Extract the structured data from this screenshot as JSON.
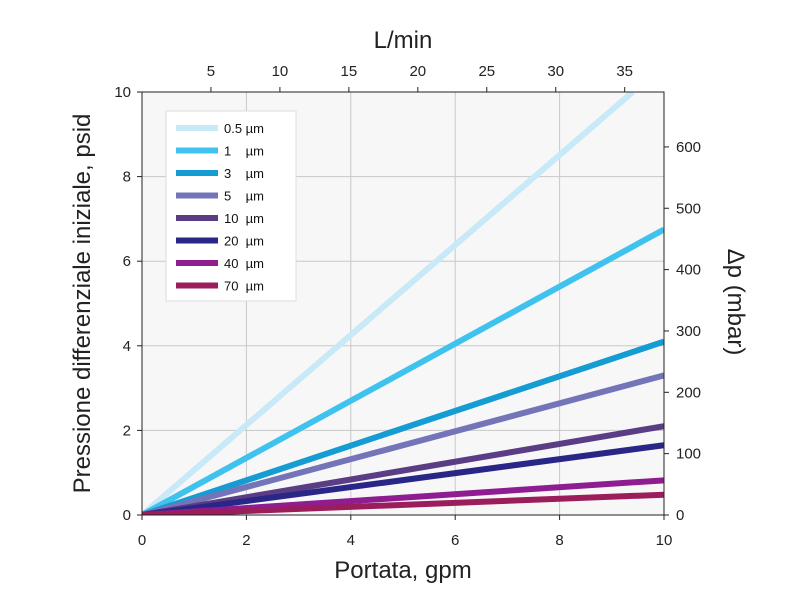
{
  "chart_data": {
    "type": "line",
    "xlabel": "Portata, gpm",
    "ylabel": "Pressione differenziale iniziale, psid",
    "x2label": "L/min",
    "y2label": "Δp (mbar)",
    "xlim": [
      0,
      10
    ],
    "ylim": [
      0,
      10
    ],
    "x_ticks": [
      0,
      2,
      4,
      6,
      8,
      10
    ],
    "y_ticks": [
      0,
      2,
      4,
      6,
      8,
      10
    ],
    "x2_ticks": [
      5,
      10,
      15,
      20,
      25,
      30,
      35
    ],
    "y2_ticks": [
      0,
      100,
      200,
      300,
      400,
      500,
      600
    ],
    "gpm_to_lmin": 3.785,
    "psi_to_mbar": 68.95,
    "grid": true,
    "legend_position": "top-left",
    "series": [
      {
        "name": "0.5 µm",
        "label": "0.5 µm",
        "color": "#c8e9f8",
        "x": [
          0,
          9.4
        ],
        "y": [
          0,
          10
        ]
      },
      {
        "name": "1 µm",
        "label": "1    µm",
        "color": "#3fc3ee",
        "x": [
          0,
          10
        ],
        "y": [
          0,
          6.75
        ]
      },
      {
        "name": "3 µm",
        "label": "3    µm",
        "color": "#159dd3",
        "x": [
          0,
          10
        ],
        "y": [
          0,
          4.1
        ]
      },
      {
        "name": "5 µm",
        "label": "5    µm",
        "color": "#7474b8",
        "x": [
          0,
          10
        ],
        "y": [
          0,
          3.3
        ]
      },
      {
        "name": "10 µm",
        "label": "10  µm",
        "color": "#5a3d85",
        "x": [
          0,
          10
        ],
        "y": [
          0,
          2.1
        ]
      },
      {
        "name": "20 µm",
        "label": "20  µm",
        "color": "#2a2688",
        "x": [
          0,
          10
        ],
        "y": [
          0,
          1.65
        ]
      },
      {
        "name": "40 µm",
        "label": "40  µm",
        "color": "#8e1d92",
        "x": [
          0,
          10
        ],
        "y": [
          0,
          0.82
        ]
      },
      {
        "name": "70 µm",
        "label": "70  µm",
        "color": "#9b1d5c",
        "x": [
          0,
          10
        ],
        "y": [
          0,
          0.48
        ]
      }
    ]
  }
}
